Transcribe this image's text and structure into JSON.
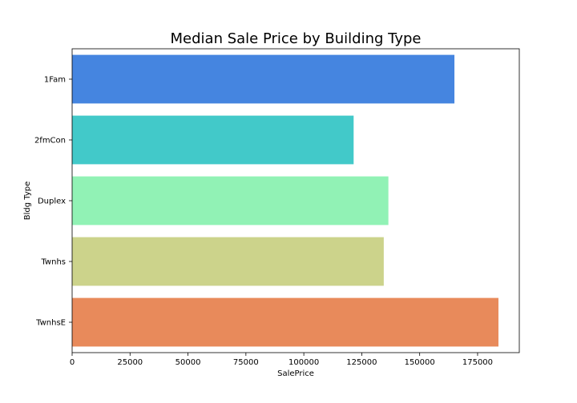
{
  "chart_data": {
    "type": "bar",
    "orientation": "horizontal",
    "title": "Median Sale Price by Building Type",
    "xlabel": "SalePrice",
    "ylabel": "Bldg Type",
    "categories": [
      "1Fam",
      "2fmCon",
      "Duplex",
      "Twnhs",
      "TwnhsE"
    ],
    "values": [
      165000,
      121500,
      136500,
      134500,
      184000
    ],
    "colors": [
      "#4585e0",
      "#42c9c9",
      "#91f2b5",
      "#ccd38b",
      "#e88a5b"
    ],
    "xlim": [
      0,
      193000
    ],
    "xticks": [
      0,
      25000,
      50000,
      75000,
      100000,
      125000,
      150000,
      175000
    ],
    "grid": false,
    "legend": "none"
  }
}
